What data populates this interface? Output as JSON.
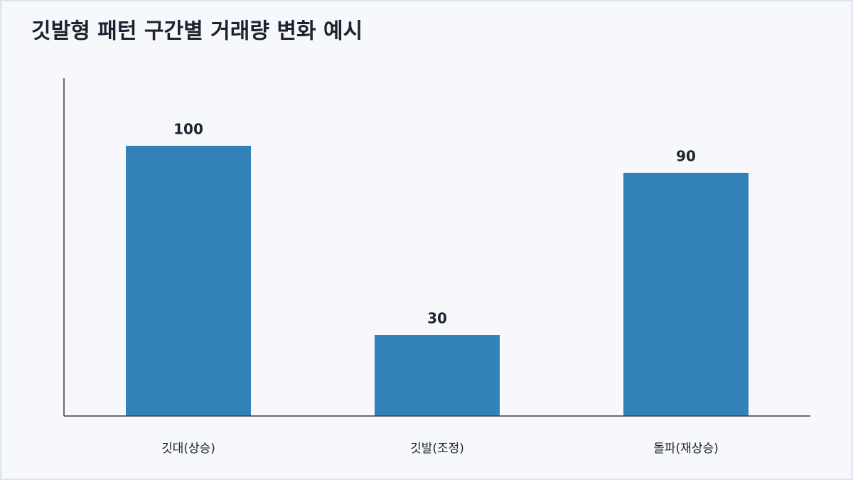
{
  "chart_data": {
    "type": "bar",
    "title": "깃발형 패턴 구간별 거래량 변화 예시",
    "categories": [
      "깃대(상승)",
      "깃발(조정)",
      "돌파(재상승)"
    ],
    "values": [
      100,
      30,
      90
    ],
    "color": "#3381b9",
    "ylim": [
      0,
      125
    ],
    "grid": false
  }
}
